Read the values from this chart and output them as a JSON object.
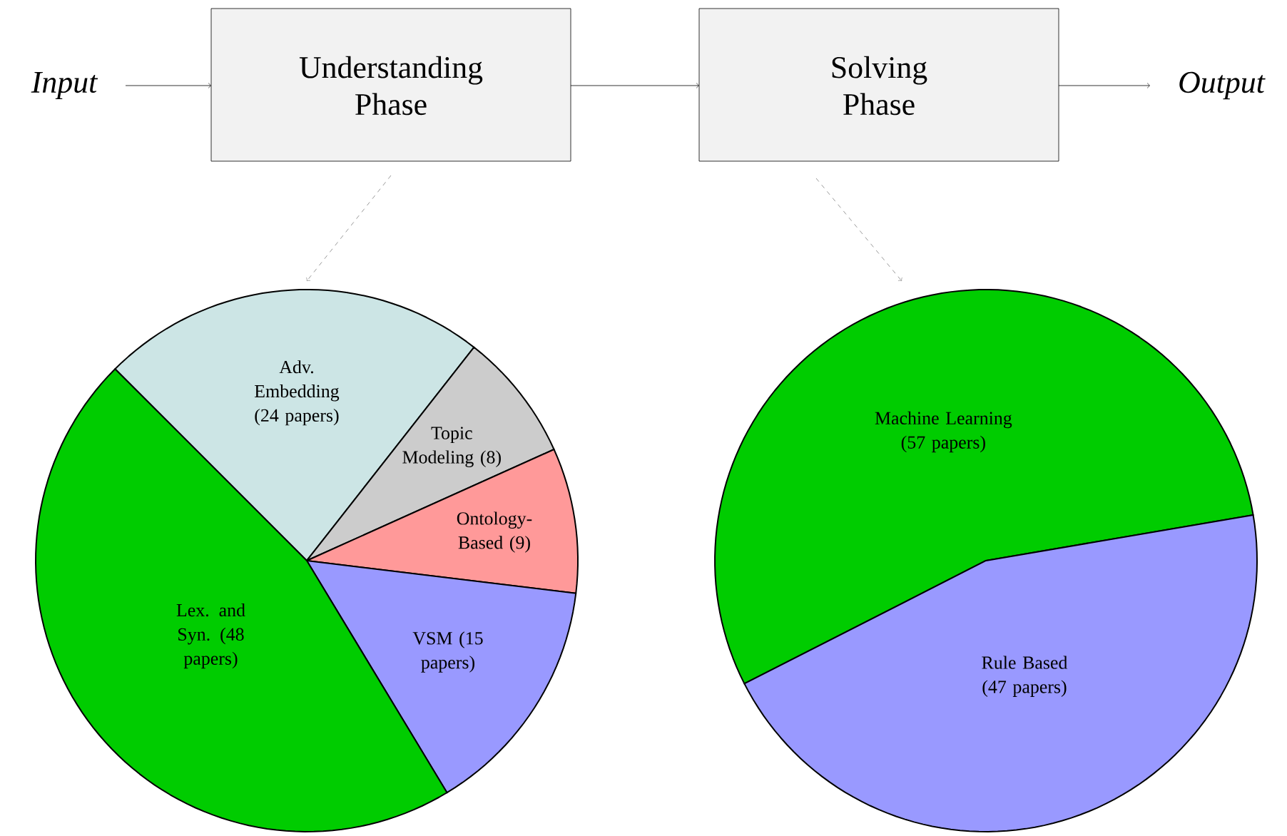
{
  "chart_data": [
    {
      "type": "pie",
      "title": "Understanding Phase",
      "annotations": [
        "Input"
      ],
      "categories": [
        "Adv. Embedding",
        "Topic Modeling",
        "Ontology-Based",
        "VSM",
        "Lex. and Syn."
      ],
      "values": [
        24,
        8,
        9,
        15,
        48
      ],
      "value_labels": [
        "(24 papers)",
        "(8)",
        "(9)",
        "(15 papers)",
        "(48 papers)"
      ],
      "colors": [
        "#cce5e5",
        "#cccccc",
        "#ff9999",
        "#9999ff",
        "#00cc00"
      ]
    },
    {
      "type": "pie",
      "title": "Solving Phase",
      "annotations": [
        "Output"
      ],
      "categories": [
        "Machine Learning",
        "Rule Based"
      ],
      "values": [
        57,
        47
      ],
      "value_labels": [
        "(57 papers)",
        "(47 papers)"
      ],
      "colors": [
        "#00cc00",
        "#9999ff"
      ]
    }
  ]
}
